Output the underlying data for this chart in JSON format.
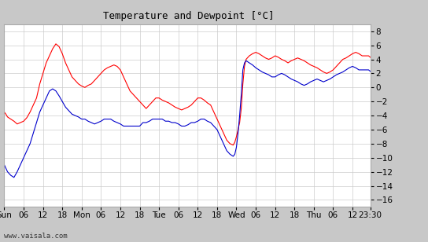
{
  "title": "Temperature and Dewpoint [°C]",
  "bg_color": "#c8c8c8",
  "plot_bg_color": "#ffffff",
  "grid_color": "#cccccc",
  "ylim": [
    -17,
    9
  ],
  "yticks": [
    -16,
    -14,
    -12,
    -10,
    -8,
    -6,
    -4,
    -2,
    0,
    2,
    4,
    6,
    8
  ],
  "x_total_hours": 113.5,
  "xtick_labels": [
    "Sun",
    "06",
    "12",
    "18",
    "Mon",
    "06",
    "12",
    "18",
    "Tue",
    "06",
    "12",
    "18",
    "Wed",
    "06",
    "12",
    "18",
    "Thu",
    "06",
    "12",
    "23:30"
  ],
  "xtick_positions": [
    0,
    6,
    12,
    18,
    24,
    30,
    36,
    42,
    48,
    54,
    60,
    66,
    72,
    78,
    84,
    90,
    96,
    102,
    108,
    113.5
  ],
  "watermark": "www.vaisala.com",
  "temp_color": "#ff0000",
  "dewp_color": "#0000cc",
  "temp_data": [
    [
      0,
      -3.5
    ],
    [
      0.5,
      -3.8
    ],
    [
      1,
      -4.2
    ],
    [
      2,
      -4.5
    ],
    [
      3,
      -4.8
    ],
    [
      4,
      -5.2
    ],
    [
      5,
      -5.0
    ],
    [
      6,
      -4.8
    ],
    [
      7,
      -4.3
    ],
    [
      8,
      -3.5
    ],
    [
      9,
      -2.5
    ],
    [
      10,
      -1.5
    ],
    [
      11,
      0.5
    ],
    [
      12,
      2.0
    ],
    [
      13,
      3.5
    ],
    [
      14,
      4.5
    ],
    [
      15,
      5.5
    ],
    [
      16,
      6.2
    ],
    [
      17,
      5.8
    ],
    [
      18,
      4.8
    ],
    [
      19,
      3.5
    ],
    [
      20,
      2.5
    ],
    [
      21,
      1.5
    ],
    [
      22,
      1.0
    ],
    [
      23,
      0.5
    ],
    [
      24,
      0.2
    ],
    [
      25,
      0.0
    ],
    [
      26,
      0.3
    ],
    [
      27,
      0.5
    ],
    [
      28,
      1.0
    ],
    [
      29,
      1.5
    ],
    [
      30,
      2.0
    ],
    [
      31,
      2.5
    ],
    [
      32,
      2.8
    ],
    [
      33,
      3.0
    ],
    [
      34,
      3.2
    ],
    [
      35,
      3.0
    ],
    [
      36,
      2.5
    ],
    [
      37,
      1.5
    ],
    [
      38,
      0.5
    ],
    [
      39,
      -0.5
    ],
    [
      40,
      -1.0
    ],
    [
      41,
      -1.5
    ],
    [
      42,
      -2.0
    ],
    [
      43,
      -2.5
    ],
    [
      44,
      -3.0
    ],
    [
      45,
      -2.5
    ],
    [
      46,
      -2.0
    ],
    [
      47,
      -1.5
    ],
    [
      48,
      -1.5
    ],
    [
      49,
      -1.8
    ],
    [
      50,
      -2.0
    ],
    [
      51,
      -2.2
    ],
    [
      52,
      -2.5
    ],
    [
      53,
      -2.8
    ],
    [
      54,
      -3.0
    ],
    [
      55,
      -3.2
    ],
    [
      56,
      -3.0
    ],
    [
      57,
      -2.8
    ],
    [
      58,
      -2.5
    ],
    [
      59,
      -2.0
    ],
    [
      60,
      -1.5
    ],
    [
      61,
      -1.5
    ],
    [
      62,
      -1.8
    ],
    [
      63,
      -2.2
    ],
    [
      64,
      -2.5
    ],
    [
      65,
      -3.5
    ],
    [
      66,
      -4.5
    ],
    [
      67,
      -5.5
    ],
    [
      68,
      -6.5
    ],
    [
      69,
      -7.5
    ],
    [
      70,
      -8.0
    ],
    [
      71,
      -8.2
    ],
    [
      71.5,
      -7.8
    ],
    [
      72,
      -7.0
    ],
    [
      73,
      -5.0
    ],
    [
      73.5,
      -3.0
    ],
    [
      74,
      0.5
    ],
    [
      74.5,
      3.0
    ],
    [
      75,
      4.0
    ],
    [
      76,
      4.5
    ],
    [
      77,
      4.8
    ],
    [
      78,
      5.0
    ],
    [
      79,
      4.8
    ],
    [
      80,
      4.5
    ],
    [
      81,
      4.2
    ],
    [
      82,
      4.0
    ],
    [
      83,
      4.2
    ],
    [
      84,
      4.5
    ],
    [
      85,
      4.3
    ],
    [
      86,
      4.0
    ],
    [
      87,
      3.8
    ],
    [
      88,
      3.5
    ],
    [
      89,
      3.8
    ],
    [
      90,
      4.0
    ],
    [
      91,
      4.2
    ],
    [
      92,
      4.0
    ],
    [
      93,
      3.8
    ],
    [
      94,
      3.5
    ],
    [
      95,
      3.2
    ],
    [
      96,
      3.0
    ],
    [
      97,
      2.8
    ],
    [
      98,
      2.5
    ],
    [
      99,
      2.2
    ],
    [
      100,
      2.0
    ],
    [
      101,
      2.2
    ],
    [
      102,
      2.5
    ],
    [
      103,
      3.0
    ],
    [
      104,
      3.5
    ],
    [
      105,
      4.0
    ],
    [
      106,
      4.2
    ],
    [
      107,
      4.5
    ],
    [
      108,
      4.8
    ],
    [
      109,
      5.0
    ],
    [
      110,
      4.8
    ],
    [
      111,
      4.5
    ],
    [
      112,
      4.5
    ],
    [
      113,
      4.5
    ],
    [
      113.5,
      4.3
    ]
  ],
  "dewp_data": [
    [
      0,
      -11.0
    ],
    [
      0.5,
      -11.5
    ],
    [
      1,
      -12.0
    ],
    [
      2,
      -12.5
    ],
    [
      3,
      -12.8
    ],
    [
      4,
      -12.0
    ],
    [
      5,
      -11.0
    ],
    [
      6,
      -10.0
    ],
    [
      7,
      -9.0
    ],
    [
      8,
      -8.0
    ],
    [
      9,
      -6.5
    ],
    [
      10,
      -5.0
    ],
    [
      11,
      -3.5
    ],
    [
      12,
      -2.5
    ],
    [
      13,
      -1.5
    ],
    [
      14,
      -0.5
    ],
    [
      15,
      -0.2
    ],
    [
      16,
      -0.5
    ],
    [
      17,
      -1.2
    ],
    [
      18,
      -2.0
    ],
    [
      19,
      -2.8
    ],
    [
      20,
      -3.3
    ],
    [
      21,
      -3.8
    ],
    [
      22,
      -4.0
    ],
    [
      23,
      -4.2
    ],
    [
      24,
      -4.5
    ],
    [
      25,
      -4.5
    ],
    [
      26,
      -4.8
    ],
    [
      27,
      -5.0
    ],
    [
      28,
      -5.2
    ],
    [
      29,
      -5.0
    ],
    [
      30,
      -4.8
    ],
    [
      31,
      -4.5
    ],
    [
      32,
      -4.5
    ],
    [
      33,
      -4.5
    ],
    [
      34,
      -4.8
    ],
    [
      35,
      -5.0
    ],
    [
      36,
      -5.2
    ],
    [
      37,
      -5.5
    ],
    [
      38,
      -5.5
    ],
    [
      39,
      -5.5
    ],
    [
      40,
      -5.5
    ],
    [
      41,
      -5.5
    ],
    [
      42,
      -5.5
    ],
    [
      43,
      -5.0
    ],
    [
      44,
      -5.0
    ],
    [
      45,
      -4.8
    ],
    [
      46,
      -4.5
    ],
    [
      47,
      -4.5
    ],
    [
      48,
      -4.5
    ],
    [
      49,
      -4.5
    ],
    [
      50,
      -4.8
    ],
    [
      51,
      -4.8
    ],
    [
      52,
      -5.0
    ],
    [
      53,
      -5.0
    ],
    [
      54,
      -5.2
    ],
    [
      55,
      -5.5
    ],
    [
      56,
      -5.5
    ],
    [
      57,
      -5.3
    ],
    [
      58,
      -5.0
    ],
    [
      59,
      -5.0
    ],
    [
      60,
      -4.8
    ],
    [
      61,
      -4.5
    ],
    [
      62,
      -4.5
    ],
    [
      63,
      -4.8
    ],
    [
      64,
      -5.0
    ],
    [
      65,
      -5.5
    ],
    [
      66,
      -6.0
    ],
    [
      67,
      -7.0
    ],
    [
      68,
      -8.0
    ],
    [
      69,
      -9.0
    ],
    [
      70,
      -9.5
    ],
    [
      71,
      -9.8
    ],
    [
      71.5,
      -9.5
    ],
    [
      72,
      -8.5
    ],
    [
      72.5,
      -6.5
    ],
    [
      73,
      -4.0
    ],
    [
      73.5,
      -1.0
    ],
    [
      74,
      2.5
    ],
    [
      74.5,
      3.5
    ],
    [
      75,
      3.8
    ],
    [
      76,
      3.5
    ],
    [
      77,
      3.2
    ],
    [
      78,
      2.8
    ],
    [
      79,
      2.5
    ],
    [
      80,
      2.2
    ],
    [
      81,
      2.0
    ],
    [
      82,
      1.8
    ],
    [
      83,
      1.5
    ],
    [
      84,
      1.5
    ],
    [
      85,
      1.8
    ],
    [
      86,
      2.0
    ],
    [
      87,
      1.8
    ],
    [
      88,
      1.5
    ],
    [
      89,
      1.2
    ],
    [
      90,
      1.0
    ],
    [
      91,
      0.8
    ],
    [
      92,
      0.5
    ],
    [
      93,
      0.3
    ],
    [
      94,
      0.5
    ],
    [
      95,
      0.8
    ],
    [
      96,
      1.0
    ],
    [
      97,
      1.2
    ],
    [
      98,
      1.0
    ],
    [
      99,
      0.8
    ],
    [
      100,
      1.0
    ],
    [
      101,
      1.2
    ],
    [
      102,
      1.5
    ],
    [
      103,
      1.8
    ],
    [
      104,
      2.0
    ],
    [
      105,
      2.2
    ],
    [
      106,
      2.5
    ],
    [
      107,
      2.8
    ],
    [
      108,
      3.0
    ],
    [
      109,
      2.8
    ],
    [
      110,
      2.5
    ],
    [
      111,
      2.5
    ],
    [
      112,
      2.5
    ],
    [
      113,
      2.5
    ],
    [
      113.5,
      2.3
    ]
  ]
}
